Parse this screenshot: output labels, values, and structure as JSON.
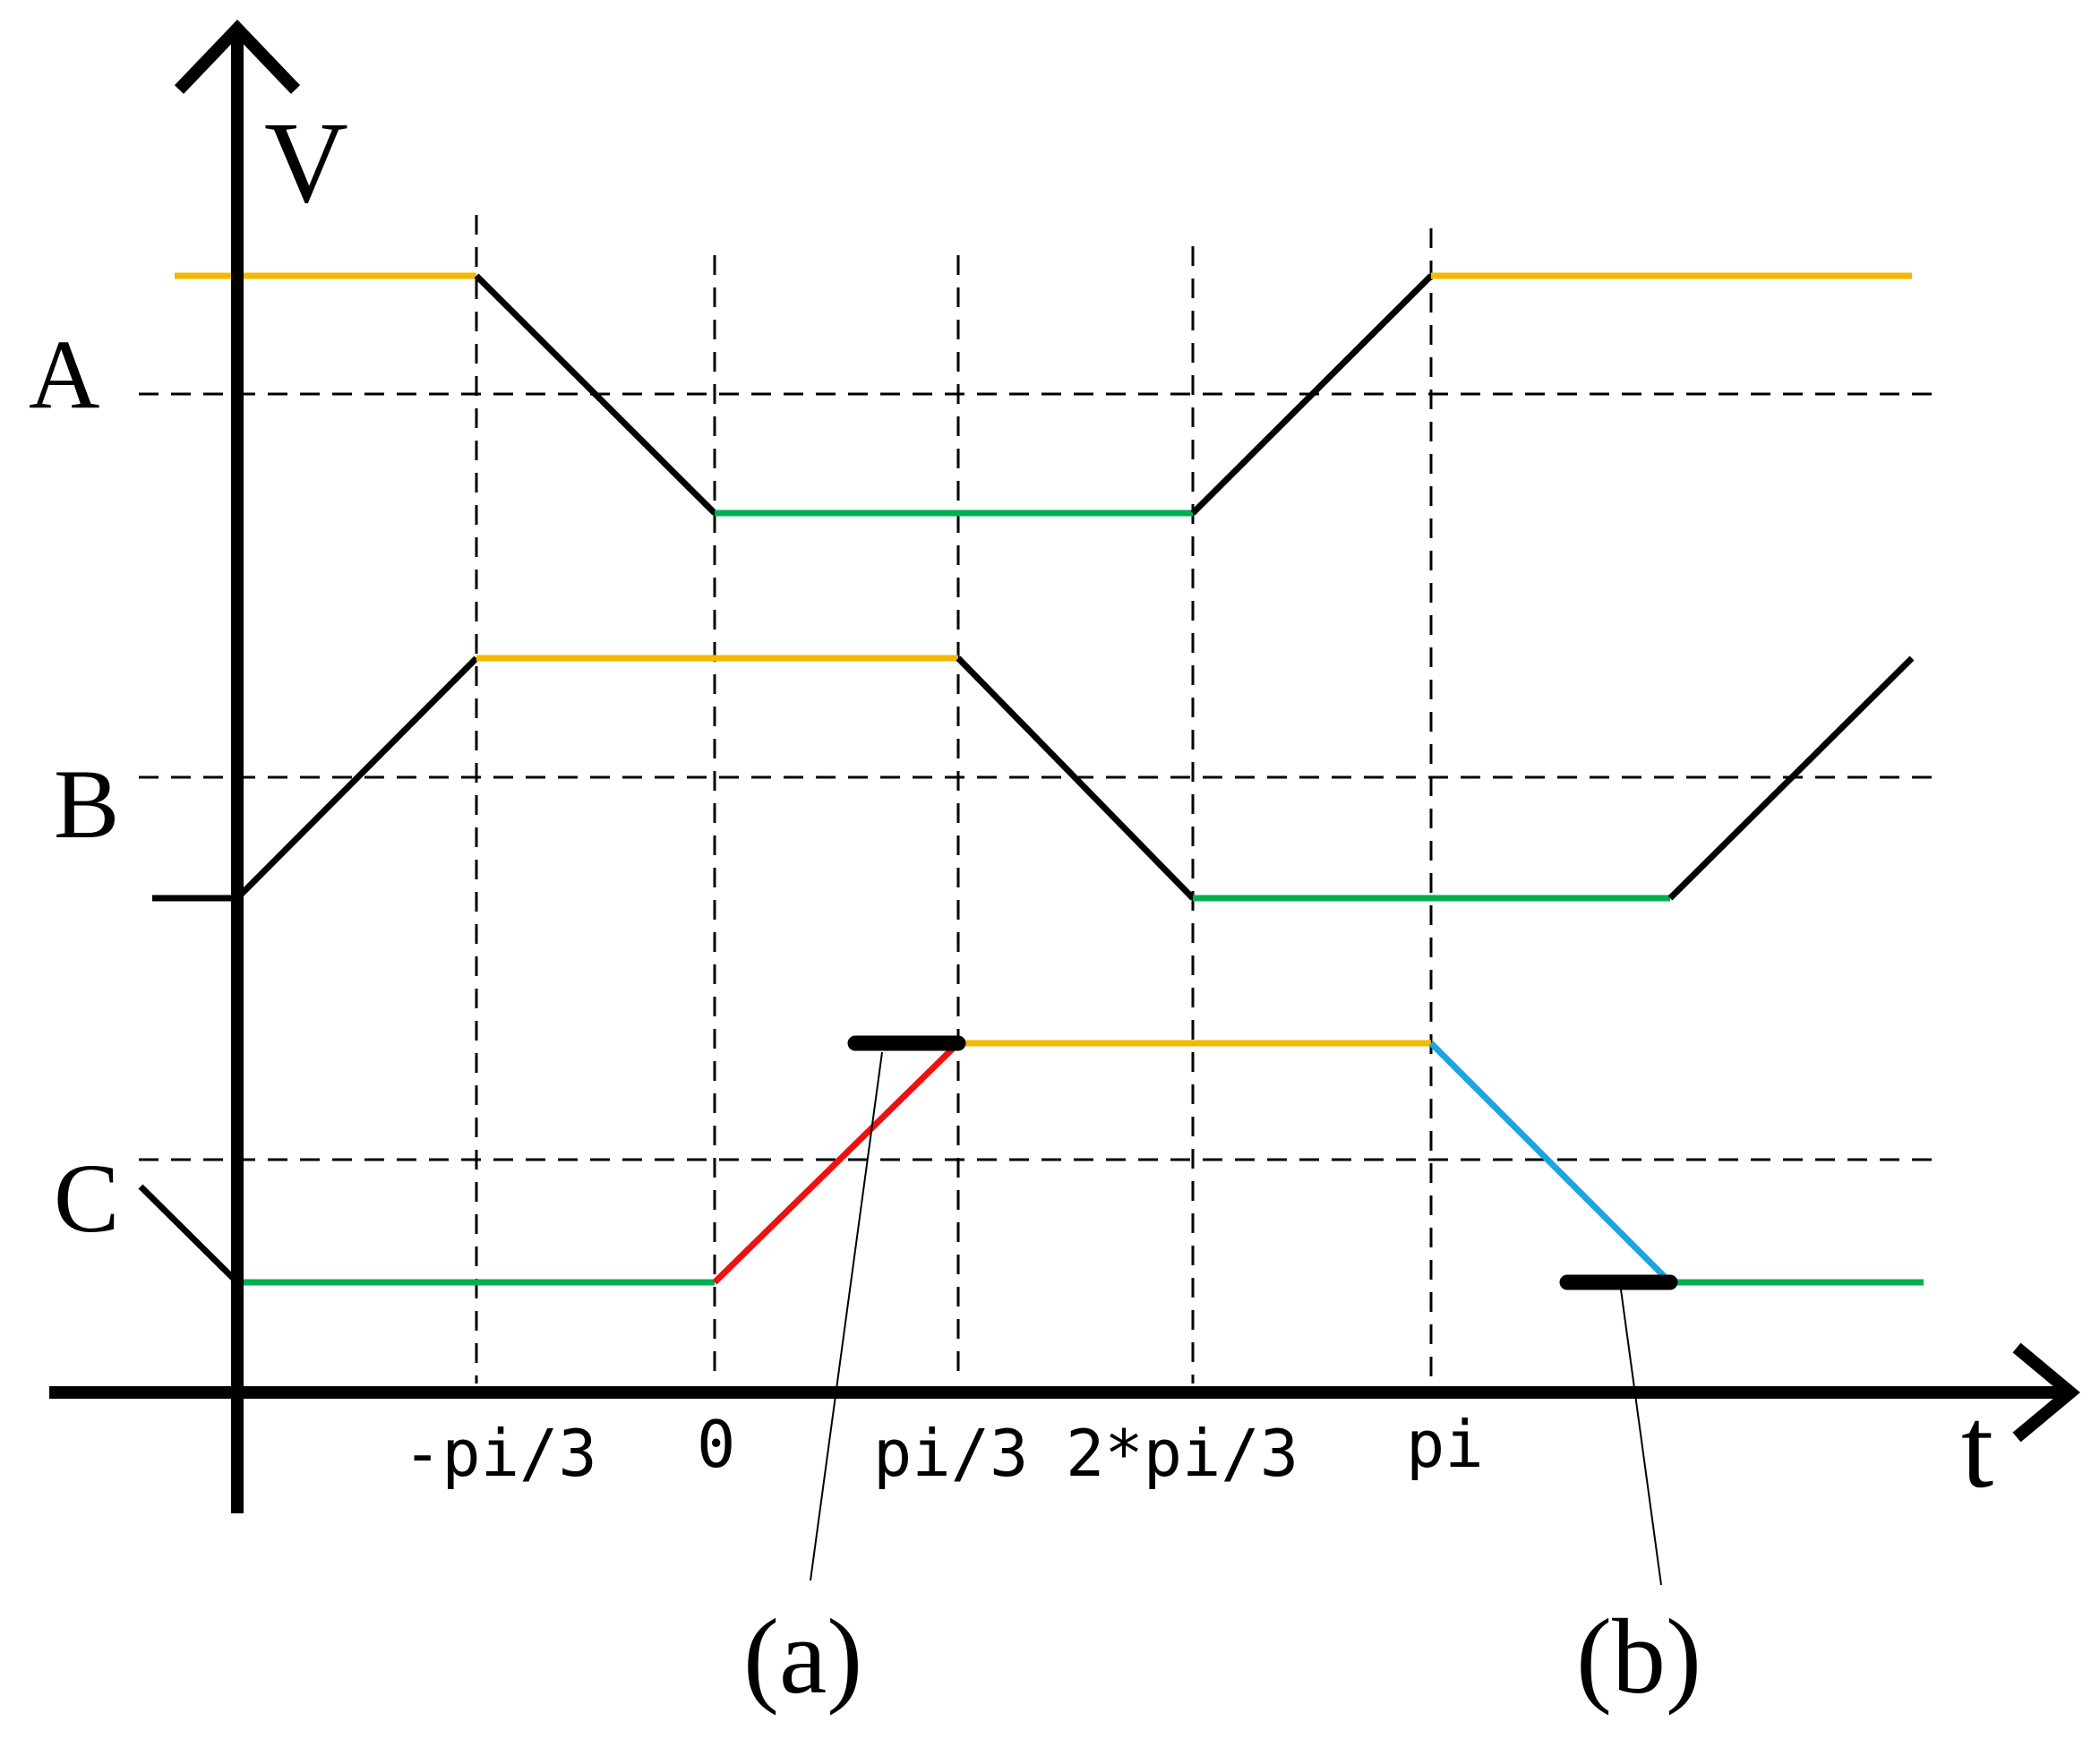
{
  "axes": {
    "y_label": "V",
    "x_label": "t"
  },
  "signal_labels": [
    "A",
    "B",
    "C"
  ],
  "tick_labels": [
    "-pi/3",
    "0",
    "pi/3",
    "2*pi/3",
    "pi"
  ],
  "annotations": [
    "(a)",
    "(b)"
  ],
  "colors": {
    "high": "#f5b800",
    "low": "#00b050",
    "rising_highlight": "#ee1111",
    "falling_highlight": "#1ca5e0",
    "axis": "#000000",
    "transition": "#000000"
  }
}
